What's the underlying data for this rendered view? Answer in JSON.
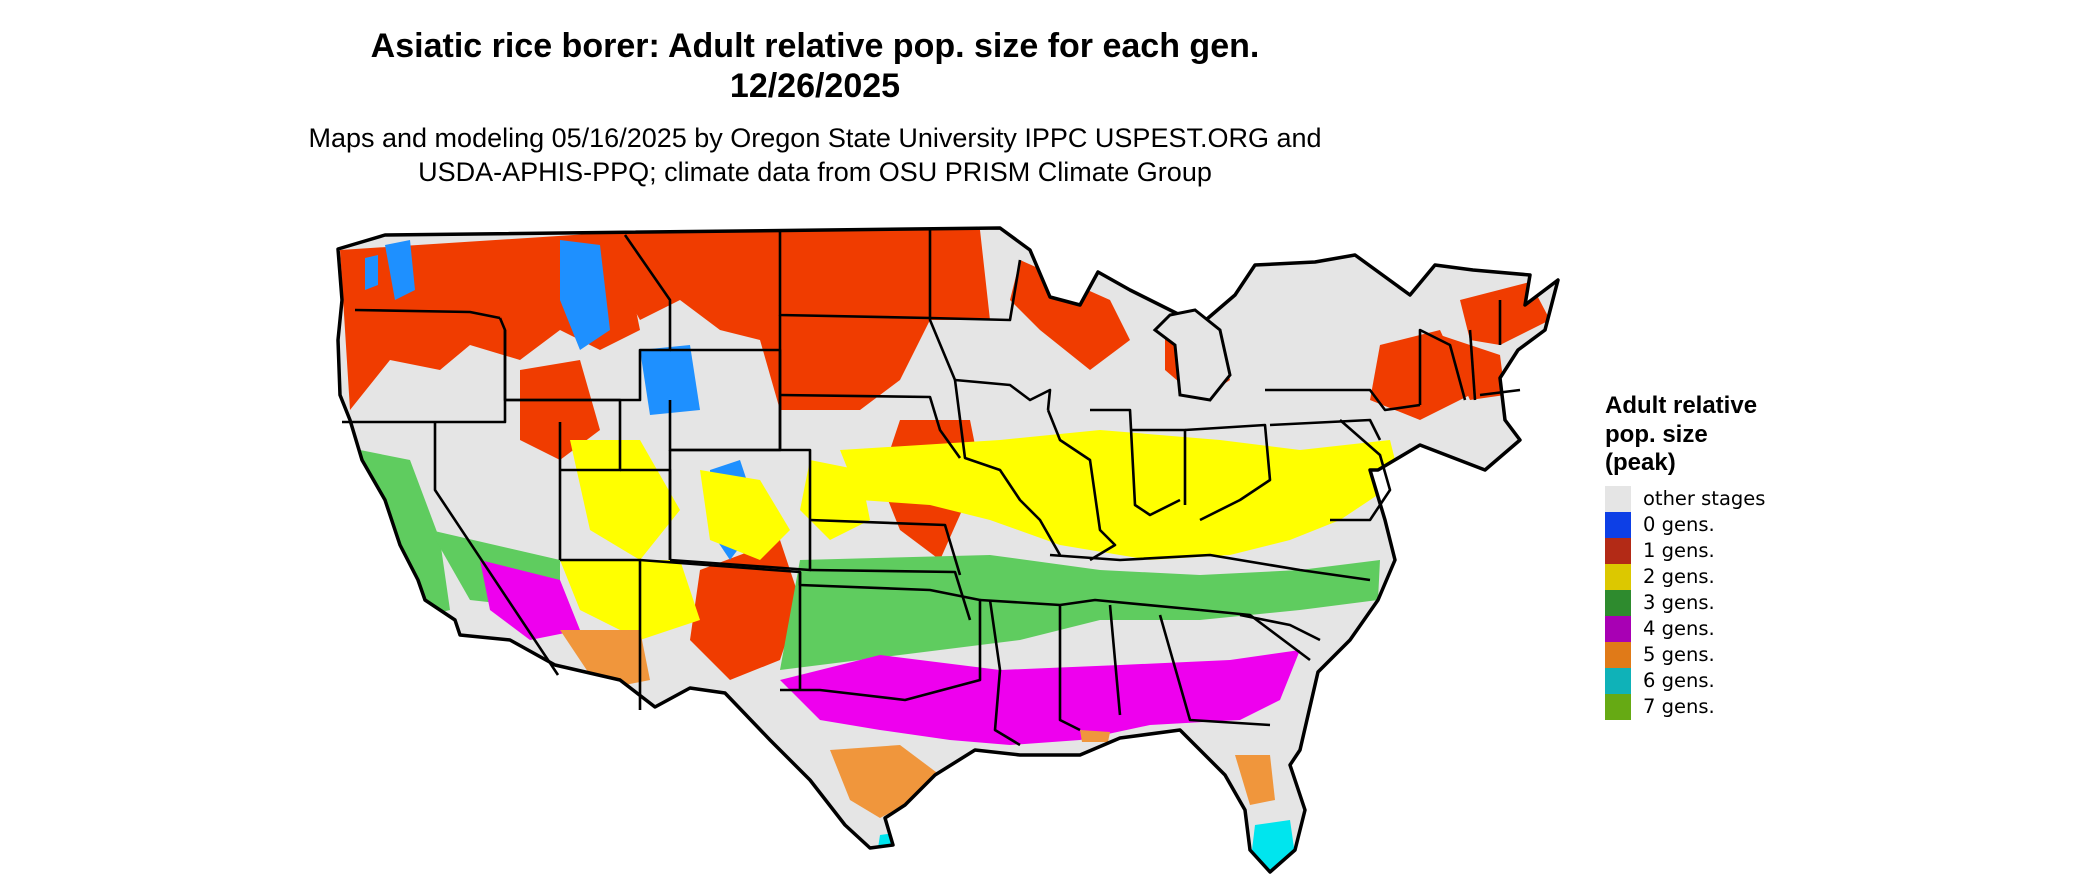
{
  "title": {
    "line1": "Asiatic rice borer: Adult relative pop. size for each gen.",
    "line2": "12/26/2025"
  },
  "subtitle": {
    "line1": "Maps and modeling 05/16/2025 by Oregon State University IPPC USPEST.ORG and",
    "line2": "USDA-APHIS-PPQ; climate data from OSU PRISM Climate Group"
  },
  "colors": {
    "land": "#e5e5e5",
    "outline": "#000000",
    "gen1_map": "#f03c00",
    "gen2_map": "#ffff00",
    "gen3_map": "#5fcc5f",
    "gen4_map": "#ee00ee",
    "gen5_map": "#f0963c",
    "gen0_map": "#1e90ff",
    "gen6_map": "#00e5ee"
  },
  "legend": {
    "title_lines": [
      "Adult relative",
      "pop. size",
      "(peak)"
    ],
    "items": [
      {
        "label": "other stages",
        "color": "#e5e5e5"
      },
      {
        "label": "0 gens.",
        "color": "#0d3fe6"
      },
      {
        "label": "1 gens.",
        "color": "#b32a16"
      },
      {
        "label": "2 gens.",
        "color": "#dcc800"
      },
      {
        "label": "3 gens.",
        "color": "#2e8b2e"
      },
      {
        "label": "4 gens.",
        "color": "#a800b4"
      },
      {
        "label": "5 gens.",
        "color": "#e07a18"
      },
      {
        "label": "6 gens.",
        "color": "#0fb2b8"
      },
      {
        "label": "7 gens.",
        "color": "#66aa14"
      }
    ]
  }
}
